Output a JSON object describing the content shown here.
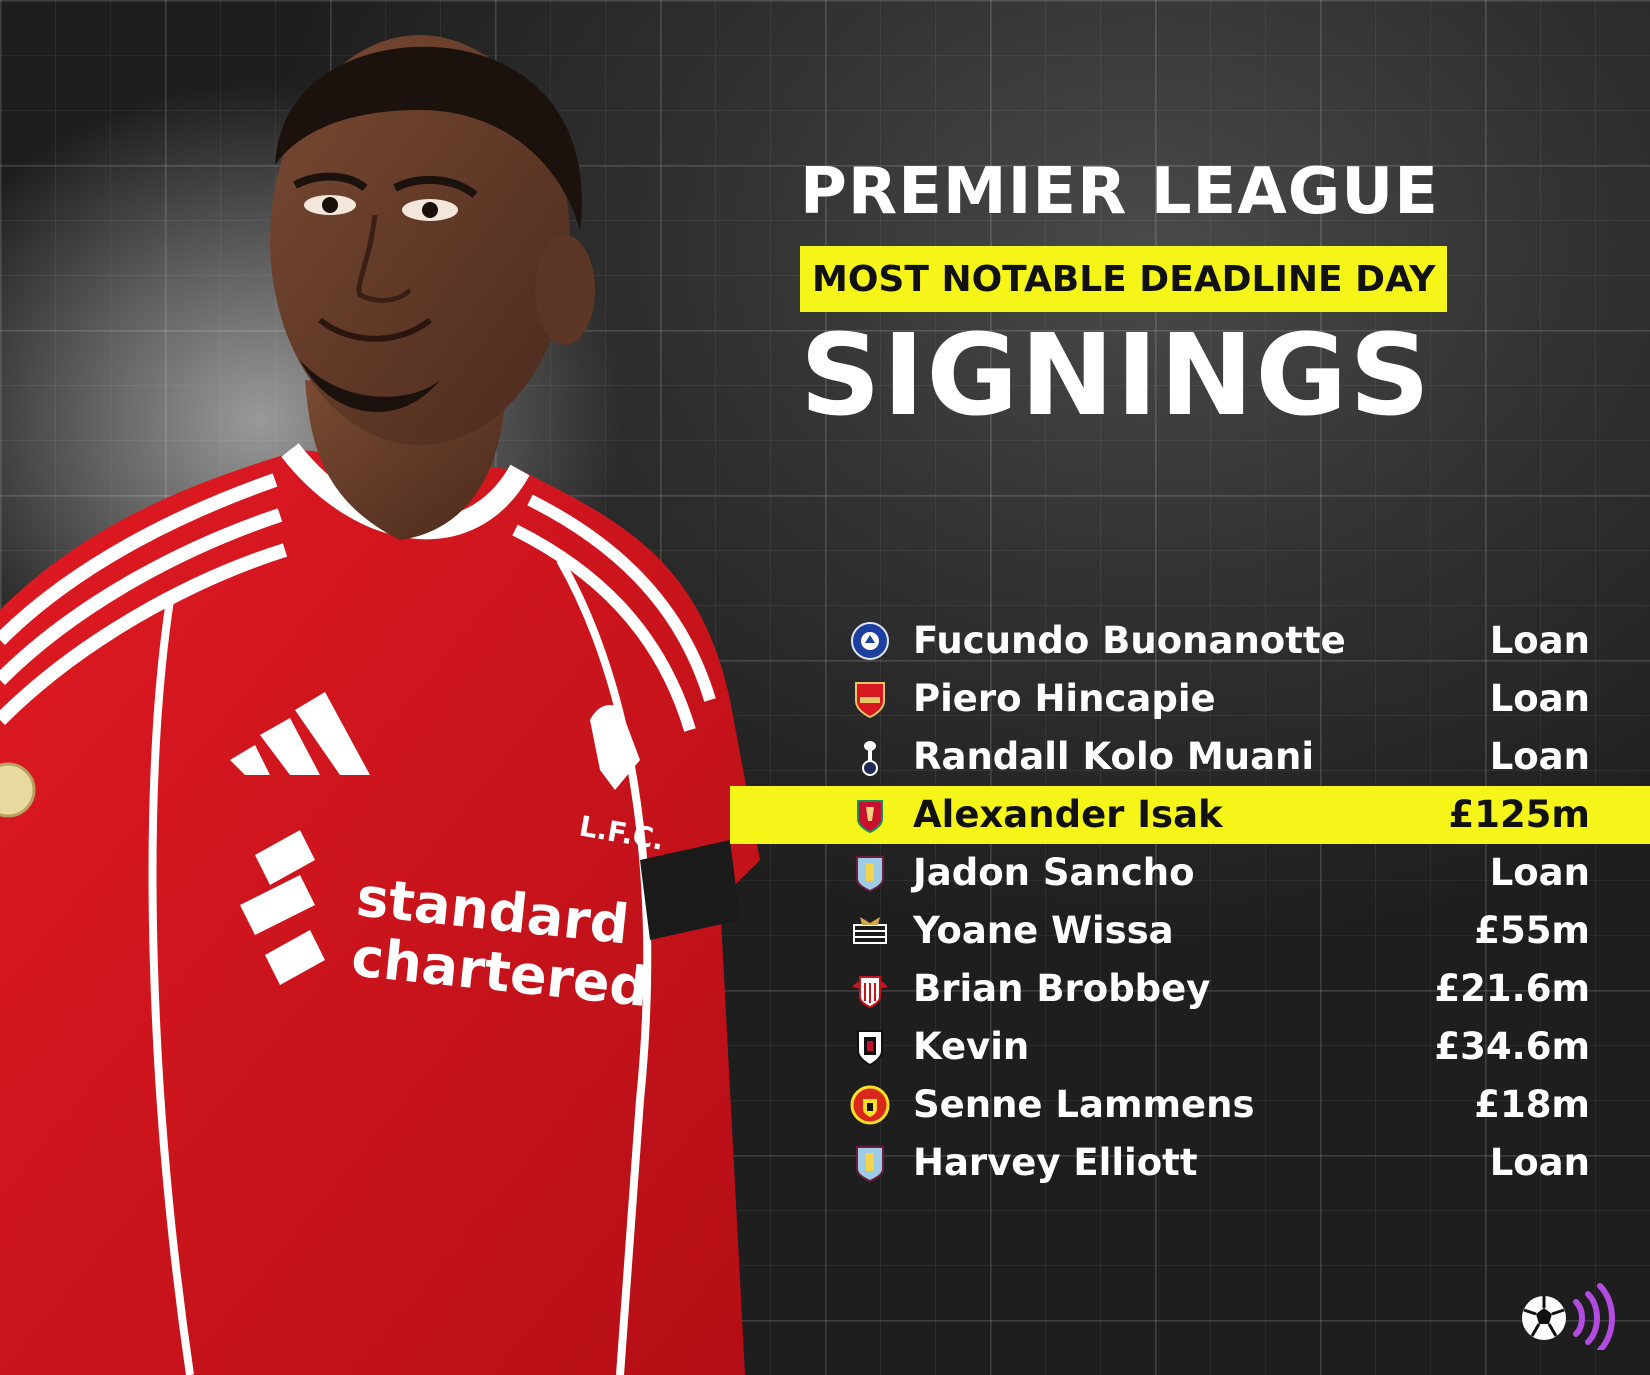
{
  "headline": {
    "top": "PREMIER LEAGUE",
    "band": "MOST NOTABLE DEADLINE DAY",
    "bottom": "SIGNINGS"
  },
  "colors": {
    "accent": "#f5f51a",
    "background": "#2b2b2b",
    "kit_red": "#d6121b"
  },
  "player_photo": {
    "sponsor_line1": "standard",
    "sponsor_line2": "chartered",
    "badge_text": "L.F.C."
  },
  "signings": [
    {
      "name": "Fucundo Buonanotte",
      "fee": "Loan",
      "crest": "chelsea-crest-icon",
      "highlight": false
    },
    {
      "name": "Piero Hincapie",
      "fee": "Loan",
      "crest": "arsenal-crest-icon",
      "highlight": false
    },
    {
      "name": "Randall Kolo Muani",
      "fee": "Loan",
      "crest": "tottenham-crest-icon",
      "highlight": false
    },
    {
      "name": "Alexander Isak",
      "fee": "£125m",
      "crest": "liverpool-crest-icon",
      "highlight": true
    },
    {
      "name": "Jadon Sancho",
      "fee": "Loan",
      "crest": "aston-villa-crest-icon",
      "highlight": false
    },
    {
      "name": "Yoane Wissa",
      "fee": "£55m",
      "crest": "newcastle-crest-icon",
      "highlight": false
    },
    {
      "name": "Brian Brobbey",
      "fee": "£21.6m",
      "crest": "sunderland-crest-icon",
      "highlight": false
    },
    {
      "name": "Kevin",
      "fee": "£34.6m",
      "crest": "fulham-crest-icon",
      "highlight": false
    },
    {
      "name": "Senne Lammens",
      "fee": "£18m",
      "crest": "man-united-crest-icon",
      "highlight": false
    },
    {
      "name": "Harvey Elliott",
      "fee": "Loan",
      "crest": "aston-villa-crest-icon",
      "highlight": false
    }
  ],
  "brand": {
    "icon": "football-broadcast-logo-icon"
  }
}
